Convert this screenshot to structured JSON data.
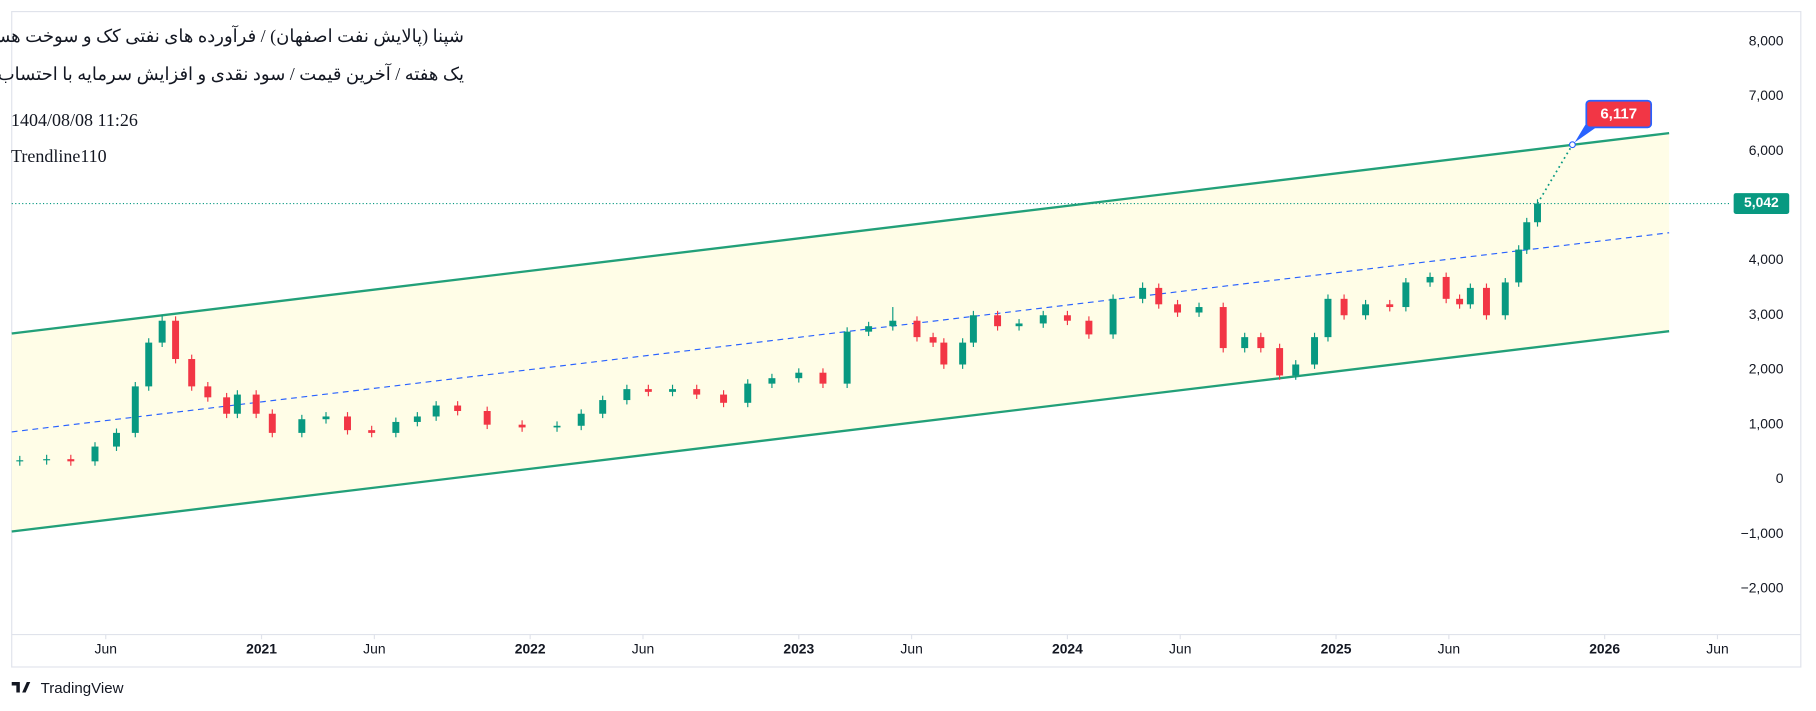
{
  "chart_data": {
    "type": "candlestick",
    "title": "شپنا (پالایش نفت اصفهان) / فرآورده های نفتی کک و سوخت هسته ای",
    "subtitle": "یک هفته / آخرین قیمت / سود نقدی و افزایش سرمایه با احتساب آورده",
    "timestamp": "1404/08/08 11:26",
    "indicator": "Trendline110",
    "x": [
      2020.1,
      2020.2,
      2020.29,
      2020.38,
      2020.46,
      2020.53,
      2020.58,
      2020.63,
      2020.68,
      2020.74,
      2020.8,
      2020.87,
      2020.91,
      2020.98,
      2021.04,
      2021.15,
      2021.24,
      2021.32,
      2021.41,
      2021.5,
      2021.58,
      2021.65,
      2021.73,
      2021.84,
      2021.97,
      2022.1,
      2022.19,
      2022.27,
      2022.36,
      2022.44,
      2022.53,
      2022.62,
      2022.72,
      2022.81,
      2022.9,
      2023.0,
      2023.09,
      2023.18,
      2023.26,
      2023.35,
      2023.44,
      2023.5,
      2023.54,
      2023.61,
      2023.65,
      2023.74,
      2023.82,
      2023.91,
      2024.0,
      2024.08,
      2024.17,
      2024.28,
      2024.34,
      2024.41,
      2024.49,
      2024.58,
      2024.66,
      2024.72,
      2024.79,
      2024.85,
      2024.92,
      2024.97,
      2025.03,
      2025.11,
      2025.2,
      2025.26,
      2025.35,
      2025.41,
      2025.46,
      2025.5,
      2025.56,
      2025.63,
      2025.68,
      2025.71,
      2025.75
    ],
    "open": [
      330,
      350,
      370,
      330,
      600,
      850,
      1700,
      2500,
      2900,
      2200,
      1700,
      1500,
      1200,
      1550,
      1200,
      850,
      1100,
      1150,
      900,
      850,
      1050,
      1150,
      1350,
      1250,
      1000,
      950,
      980,
      1200,
      1450,
      1650,
      1600,
      1650,
      1550,
      1400,
      1750,
      1850,
      1950,
      1750,
      2700,
      2800,
      2900,
      2600,
      2500,
      2100,
      2500,
      3000,
      2800,
      2850,
      3000,
      2900,
      2650,
      3300,
      3500,
      3200,
      3050,
      3150,
      2400,
      2600,
      2400,
      1900,
      2100,
      2600,
      3300,
      3000,
      3200,
      3150,
      3600,
      3700,
      3300,
      3200,
      3500,
      3000,
      3600,
      4200,
      4700
    ],
    "high": [
      430,
      450,
      450,
      680,
      930,
      1780,
      2580,
      3000,
      2980,
      2280,
      1780,
      1580,
      1630,
      1630,
      1280,
      1180,
      1230,
      1230,
      980,
      1130,
      1230,
      1430,
      1430,
      1330,
      1080,
      1060,
      1280,
      1530,
      1730,
      1730,
      1730,
      1730,
      1630,
      1830,
      1930,
      2030,
      2030,
      2780,
      2880,
      3150,
      2980,
      2680,
      2580,
      2580,
      3080,
      3080,
      2930,
      3080,
      3080,
      2980,
      3380,
      3600,
      3580,
      3280,
      3230,
      3230,
      2680,
      2680,
      2480,
      2180,
      2680,
      3380,
      3380,
      3280,
      3280,
      3680,
      3780,
      3780,
      3380,
      3580,
      3580,
      3680,
      4280,
      4780,
      5120
    ],
    "low": [
      250,
      270,
      250,
      250,
      520,
      770,
      1620,
      2420,
      2120,
      1620,
      1420,
      1120,
      1120,
      1120,
      770,
      770,
      1020,
      820,
      770,
      770,
      970,
      1070,
      1170,
      920,
      870,
      870,
      900,
      1120,
      1370,
      1520,
      1520,
      1470,
      1320,
      1320,
      1670,
      1770,
      1670,
      1670,
      2620,
      2720,
      2520,
      2420,
      2020,
      2020,
      2420,
      2720,
      2720,
      2770,
      2820,
      2570,
      2570,
      3220,
      3120,
      2970,
      2970,
      2320,
      2320,
      2320,
      1820,
      1820,
      2020,
      2520,
      2920,
      2920,
      3070,
      3070,
      3520,
      3220,
      3120,
      3120,
      2920,
      2920,
      3520,
      4120,
      4620
    ],
    "close": [
      350,
      370,
      330,
      600,
      850,
      1700,
      2500,
      2900,
      2200,
      1700,
      1500,
      1200,
      1550,
      1200,
      850,
      1100,
      1150,
      900,
      850,
      1050,
      1150,
      1350,
      1250,
      1000,
      950,
      980,
      1200,
      1450,
      1650,
      1600,
      1650,
      1550,
      1400,
      1750,
      1850,
      1950,
      1750,
      2700,
      2800,
      2900,
      2600,
      2500,
      2100,
      2500,
      3000,
      2800,
      2850,
      3000,
      2900,
      2650,
      3300,
      3500,
      3200,
      3050,
      3150,
      2400,
      2600,
      2400,
      1900,
      2100,
      2600,
      3300,
      3000,
      3200,
      3150,
      3600,
      3700,
      3300,
      3200,
      3500,
      3000,
      3600,
      4200,
      4700,
      5042
    ],
    "up_color": "#089981",
    "down_color": "#f23645",
    "channel": {
      "upper": {
        "x": [
          2020.07,
          2026.24
        ],
        "values": [
          2667,
          6328
        ]
      },
      "middle": {
        "x": [
          2020.07,
          2026.24
        ],
        "values": [
          868,
          4508
        ]
      },
      "lower": {
        "x": [
          2020.07,
          2026.24
        ],
        "values": [
          -952,
          2709
        ]
      },
      "line_color": "#22a079",
      "middle_color": "#2962ff",
      "fill": "#fffde7"
    },
    "last_price": {
      "value": 5042,
      "label": "5,042",
      "color": "#089981"
    },
    "projection": {
      "x": [
        2025.75,
        2025.88
      ],
      "values": [
        5042,
        6117
      ],
      "value_label": "6,117",
      "color": "#f23645"
    },
    "xlim": [
      2020.07,
      2026.45
    ],
    "ylim": [
      -2836,
      8550
    ],
    "xticks": [
      {
        "value": 2020.42,
        "label": "Jun"
      },
      2021,
      {
        "value": 2021.42,
        "label": "Jun"
      },
      2022,
      {
        "value": 2022.42,
        "label": "Jun"
      },
      2023,
      {
        "value": 2023.42,
        "label": "Jun"
      },
      2024,
      {
        "value": 2024.42,
        "label": "Jun"
      },
      2025,
      {
        "value": 2025.42,
        "label": "Jun"
      },
      2026,
      {
        "value": 2026.42,
        "label": "Jun"
      }
    ],
    "yticks": [
      {
        "value": -2000,
        "label": "−2,000"
      },
      {
        "value": -1000,
        "label": "−1,000"
      },
      0,
      {
        "value": 1000,
        "label": "1,000"
      },
      {
        "value": 2000,
        "label": "2,000"
      },
      {
        "value": 3000,
        "label": "3,000"
      },
      {
        "value": 4000,
        "label": "4,000"
      },
      {
        "value": 5000,
        "label": "5,000"
      },
      {
        "value": 6000,
        "label": "6,000"
      },
      {
        "value": 7000,
        "label": "7,000"
      },
      {
        "value": 8000,
        "label": "8,000"
      }
    ]
  },
  "brand": "TradingView"
}
